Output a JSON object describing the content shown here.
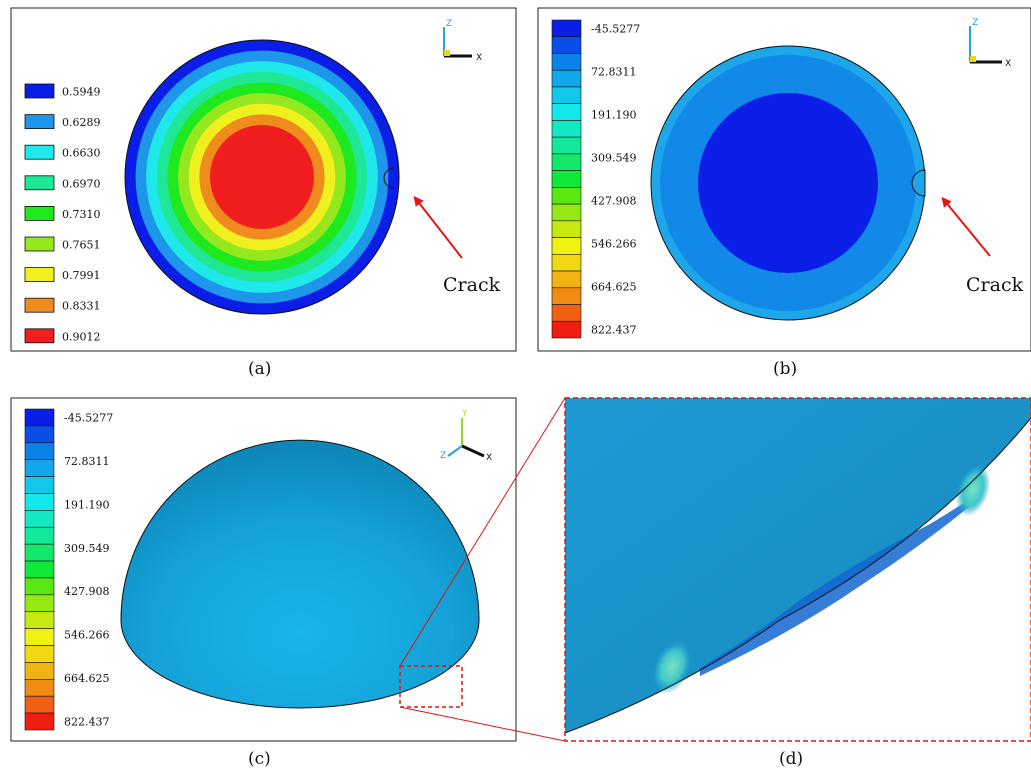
{
  "panels": {
    "a": {
      "caption": "(a)",
      "legend": {
        "colors": [
          "#0a1ee8",
          "#1e96ea",
          "#1ee8ea",
          "#1ee896",
          "#1ee81e",
          "#96e81e",
          "#f0f01e",
          "#f08c1e",
          "#f01e1e"
        ],
        "labels": [
          "0.5949",
          "0.6289",
          "0.6630",
          "0.6970",
          "0.7310",
          "0.7651",
          "0.7991",
          "0.8331",
          "0.9012"
        ]
      },
      "rings": [
        "#0a1ee8",
        "#1e96ea",
        "#1ee8ea",
        "#1ee896",
        "#1ee81e",
        "#96e81e",
        "#f0f01e",
        "#f08c1e",
        "#f01e1e"
      ],
      "crack_label": "Crack",
      "axis": {
        "vertical": "Z",
        "horizontal": "X"
      }
    },
    "b": {
      "caption": "(b)",
      "legend": {
        "colors": [
          "#0a1ee8",
          "#0a4ee8",
          "#0a82e8",
          "#12a6ea",
          "#12c8ea",
          "#12e8e8",
          "#12e8c2",
          "#12e89a",
          "#12e86a",
          "#12e83a",
          "#5ae812",
          "#96e812",
          "#c8e812",
          "#f0f012",
          "#f0d812",
          "#f0b412",
          "#f08c12",
          "#f06012",
          "#f01e12"
        ],
        "labels": [
          "-45.5277",
          "72.8311",
          "191.190",
          "309.549",
          "427.908",
          "546.266",
          "664.625",
          "822.437"
        ]
      },
      "crack_label": "Crack",
      "axis": {
        "vertical": "Z",
        "horizontal": "X"
      }
    },
    "c": {
      "caption": "(c)",
      "legend": {
        "labels": [
          "-45.5277",
          "72.8311",
          "191.190",
          "309.549",
          "427.908",
          "546.266",
          "664.625",
          "822.437"
        ]
      },
      "axis": {
        "vertical": "Y",
        "horizontal": "X",
        "depth": "Z"
      }
    },
    "d": {
      "caption": "(d)"
    }
  }
}
